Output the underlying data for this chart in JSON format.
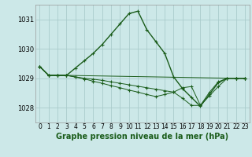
{
  "title": "Graphe pression niveau de la mer (hPa)",
  "bg_color": "#cce8e8",
  "grid_color": "#aacccc",
  "line_color": "#1a5c1a",
  "ylim": [
    1027.5,
    1031.5
  ],
  "xlim": [
    -0.5,
    23.5
  ],
  "yticks": [
    1028,
    1029,
    1030,
    1031
  ],
  "xticks": [
    0,
    1,
    2,
    3,
    4,
    5,
    6,
    7,
    8,
    9,
    10,
    11,
    12,
    13,
    14,
    15,
    16,
    17,
    18,
    19,
    20,
    21,
    22,
    23
  ],
  "series1": {
    "x": [
      0,
      1,
      2,
      3,
      4,
      5,
      6,
      7,
      8,
      9,
      10,
      11,
      12,
      13,
      14,
      15,
      16,
      17,
      18,
      19,
      20,
      21,
      22,
      23
    ],
    "y": [
      1029.4,
      1029.1,
      1029.1,
      1029.1,
      1029.35,
      1029.6,
      1029.85,
      1030.15,
      1030.5,
      1030.85,
      1031.2,
      1031.28,
      1030.65,
      1030.25,
      1029.85,
      1029.05,
      1028.65,
      1028.35,
      1028.05,
      1028.45,
      1028.85,
      1029.0,
      1029.0,
      1029.0
    ]
  },
  "series2": {
    "x": [
      0,
      1,
      2,
      3,
      4,
      5,
      6,
      7,
      8,
      9,
      10,
      11,
      12,
      13,
      14,
      15,
      16,
      17,
      18,
      19,
      20,
      21,
      22,
      23
    ],
    "y": [
      1029.4,
      1029.1,
      1029.1,
      1029.1,
      1029.05,
      1029.0,
      1028.97,
      1028.93,
      1028.88,
      1028.83,
      1028.78,
      1028.73,
      1028.68,
      1028.63,
      1028.58,
      1028.53,
      1028.68,
      1028.72,
      1028.08,
      1028.52,
      1028.88,
      1029.0,
      1029.0,
      1029.0
    ]
  },
  "series3": {
    "x": [
      0,
      1,
      2,
      3,
      4,
      5,
      6,
      7,
      8,
      9,
      10,
      11,
      12,
      13,
      14,
      15,
      16,
      17,
      18,
      19,
      20,
      21,
      22,
      23
    ],
    "y": [
      1029.4,
      1029.1,
      1029.1,
      1029.1,
      1029.04,
      1028.98,
      1028.9,
      1028.83,
      1028.75,
      1028.68,
      1028.6,
      1028.53,
      1028.45,
      1028.38,
      1028.45,
      1028.53,
      1028.32,
      1028.08,
      1028.08,
      1028.4,
      1028.72,
      1029.0,
      1029.0,
      1029.0
    ]
  },
  "series4": {
    "x": [
      0,
      1,
      2,
      3,
      22,
      23
    ],
    "y": [
      1029.4,
      1029.1,
      1029.1,
      1029.1,
      1029.0,
      1029.0
    ]
  },
  "title_fontsize": 7,
  "tick_fontsize": 5.5
}
